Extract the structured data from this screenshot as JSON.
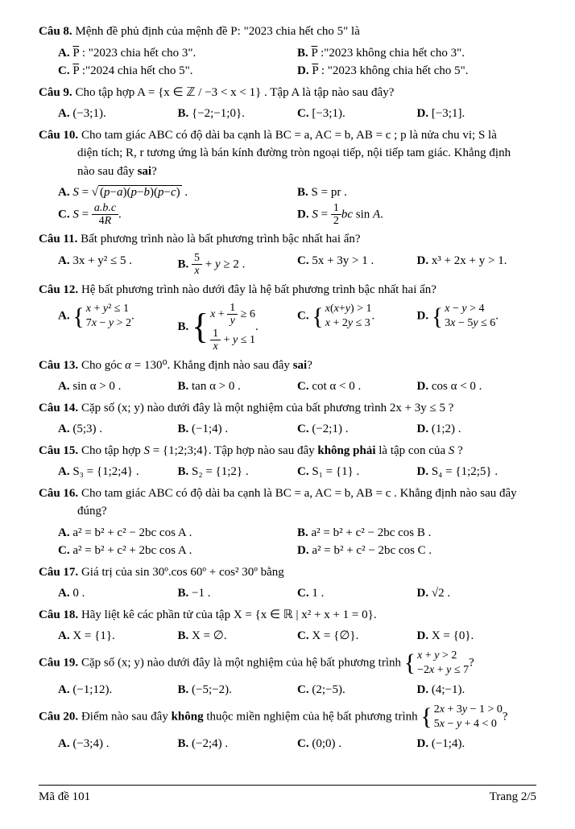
{
  "q8": {
    "label": "Câu 8.",
    "text": " Mệnh đề phủ định của mệnh đề P: \"2023 chia hết cho 5\" là",
    "a": "P̄ : \"2023 chia hết cho 3\".",
    "b": "P̄ :\"2023 không chia hết cho 3\".",
    "c": "P̄ :\"2024 chia hết cho 5\".",
    "d": "P̄ : \"2023 không chia hết cho 5\"."
  },
  "q9": {
    "label": "Câu 9.",
    "text": " Cho tập hợp  A = {x ∈ ℤ / −3 < x < 1} . Tập A là tập nào sau đây?",
    "a": "(−3;1).",
    "b": "{−2;−1;0}.",
    "c": "[−3;1).",
    "d": "[−3;1]."
  },
  "q10": {
    "label": "Câu 10.",
    "text1": " Cho tam giác  ABC  có độ dài ba cạnh là  BC = a, AC = b, AB = c ;  p  là nửa chu vi;  S là",
    "text2": "diện tích;  R, r  tương ứng là bán kính đường tròn ngoại tiếp, nội tiếp tam giác. Khẳng định",
    "text3": "nào sau đây sai?",
    "b": "S = pr .",
    "d_pre": "S = ",
    "d_post": "bc sin A."
  },
  "q11": {
    "label": "Câu 11.",
    "text": " Bất phương trình nào là bất phương trình bậc nhất hai ẩn?",
    "a": "3x + y² ≤ 5 .",
    "c": "5x + 3y > 1 .",
    "d": "x³ + 2x + y > 1."
  },
  "q12": {
    "label": "Câu 12.",
    "text": " Hệ bất phương trình nào dưới đây là hệ bất phương trình bậc nhất hai ẩn?"
  },
  "q13": {
    "label": "Câu 13.",
    "text": " Cho góc  α = 130⁰. Khẳng định nào sau đây sai?",
    "a": "sin α > 0 .",
    "b": "tan α > 0 .",
    "c": "cot α < 0 .",
    "d": "cos α < 0 ."
  },
  "q14": {
    "label": "Câu 14.",
    "text": " Cặp số (x; y) nào dưới đây là một nghiệm của bất phương trình  2x + 3y ≤ 5 ?",
    "a": "(5;3) .",
    "b": "(−1;4) .",
    "c": "(−2;1) .",
    "d": "(1;2) ."
  },
  "q15": {
    "label": "Câu 15.",
    "text": " Cho tập hợp  S = {1;2;3;4} . Tập hợp nào sau đây không phải là tập con của S ?",
    "a": "S₃ = {1;2;4} .",
    "b": "S₂ = {1;2} .",
    "c": "S₁ = {1} .",
    "d": "S₄ = {1;2;5} ."
  },
  "q16": {
    "label": "Câu 16.",
    "text1": " Cho tam giác  ABC  có độ dài ba cạnh là  BC = a, AC = b, AB = c . Khẳng định nào sau đây",
    "text2": "đúng?",
    "a": "a² = b² + c² − 2bc cos A .",
    "b": "a² = b² + c² − 2bc cos B .",
    "c": "a² = b² + c² + 2bc cos A .",
    "d": "a² = b² + c² − 2bc cos C ."
  },
  "q17": {
    "label": "Câu 17.",
    "text": " Giá trị của  sin 30º.cos 60º + cos² 30º  bằng",
    "a": "0 .",
    "b": "−1 .",
    "c": "1 .",
    "d": "√2 ."
  },
  "q18": {
    "label": "Câu 18.",
    "text": " Hãy liệt kê các phần tử của tập  X = {x ∈ ℝ | x² + x + 1 = 0}.",
    "a": "X = {1}.",
    "b": "X = ∅.",
    "c": "X = {∅}.",
    "d": "X = {0}."
  },
  "q19": {
    "label": "Câu 19.",
    "text": " Cặp số (x; y) nào dưới đây là một nghiệm của hệ bất phương trình ",
    "a": "(−1;12).",
    "b": "(−5;−2).",
    "c": "(2;−5).",
    "d": "(4;−1)."
  },
  "q20": {
    "label": "Câu 20.",
    "text": " Điểm nào sau đây không thuộc miền nghiệm của hệ bất phương trình ",
    "a": "(−3;4) .",
    "b": "(−2;4) .",
    "c": "(0;0) .",
    "d": "(−1;4)."
  },
  "footer": {
    "left": "Mã đề 101",
    "right": "Trang 2/5"
  },
  "labels": {
    "a": "A. ",
    "b": "B. ",
    "c": "C. ",
    "d": "D. "
  }
}
